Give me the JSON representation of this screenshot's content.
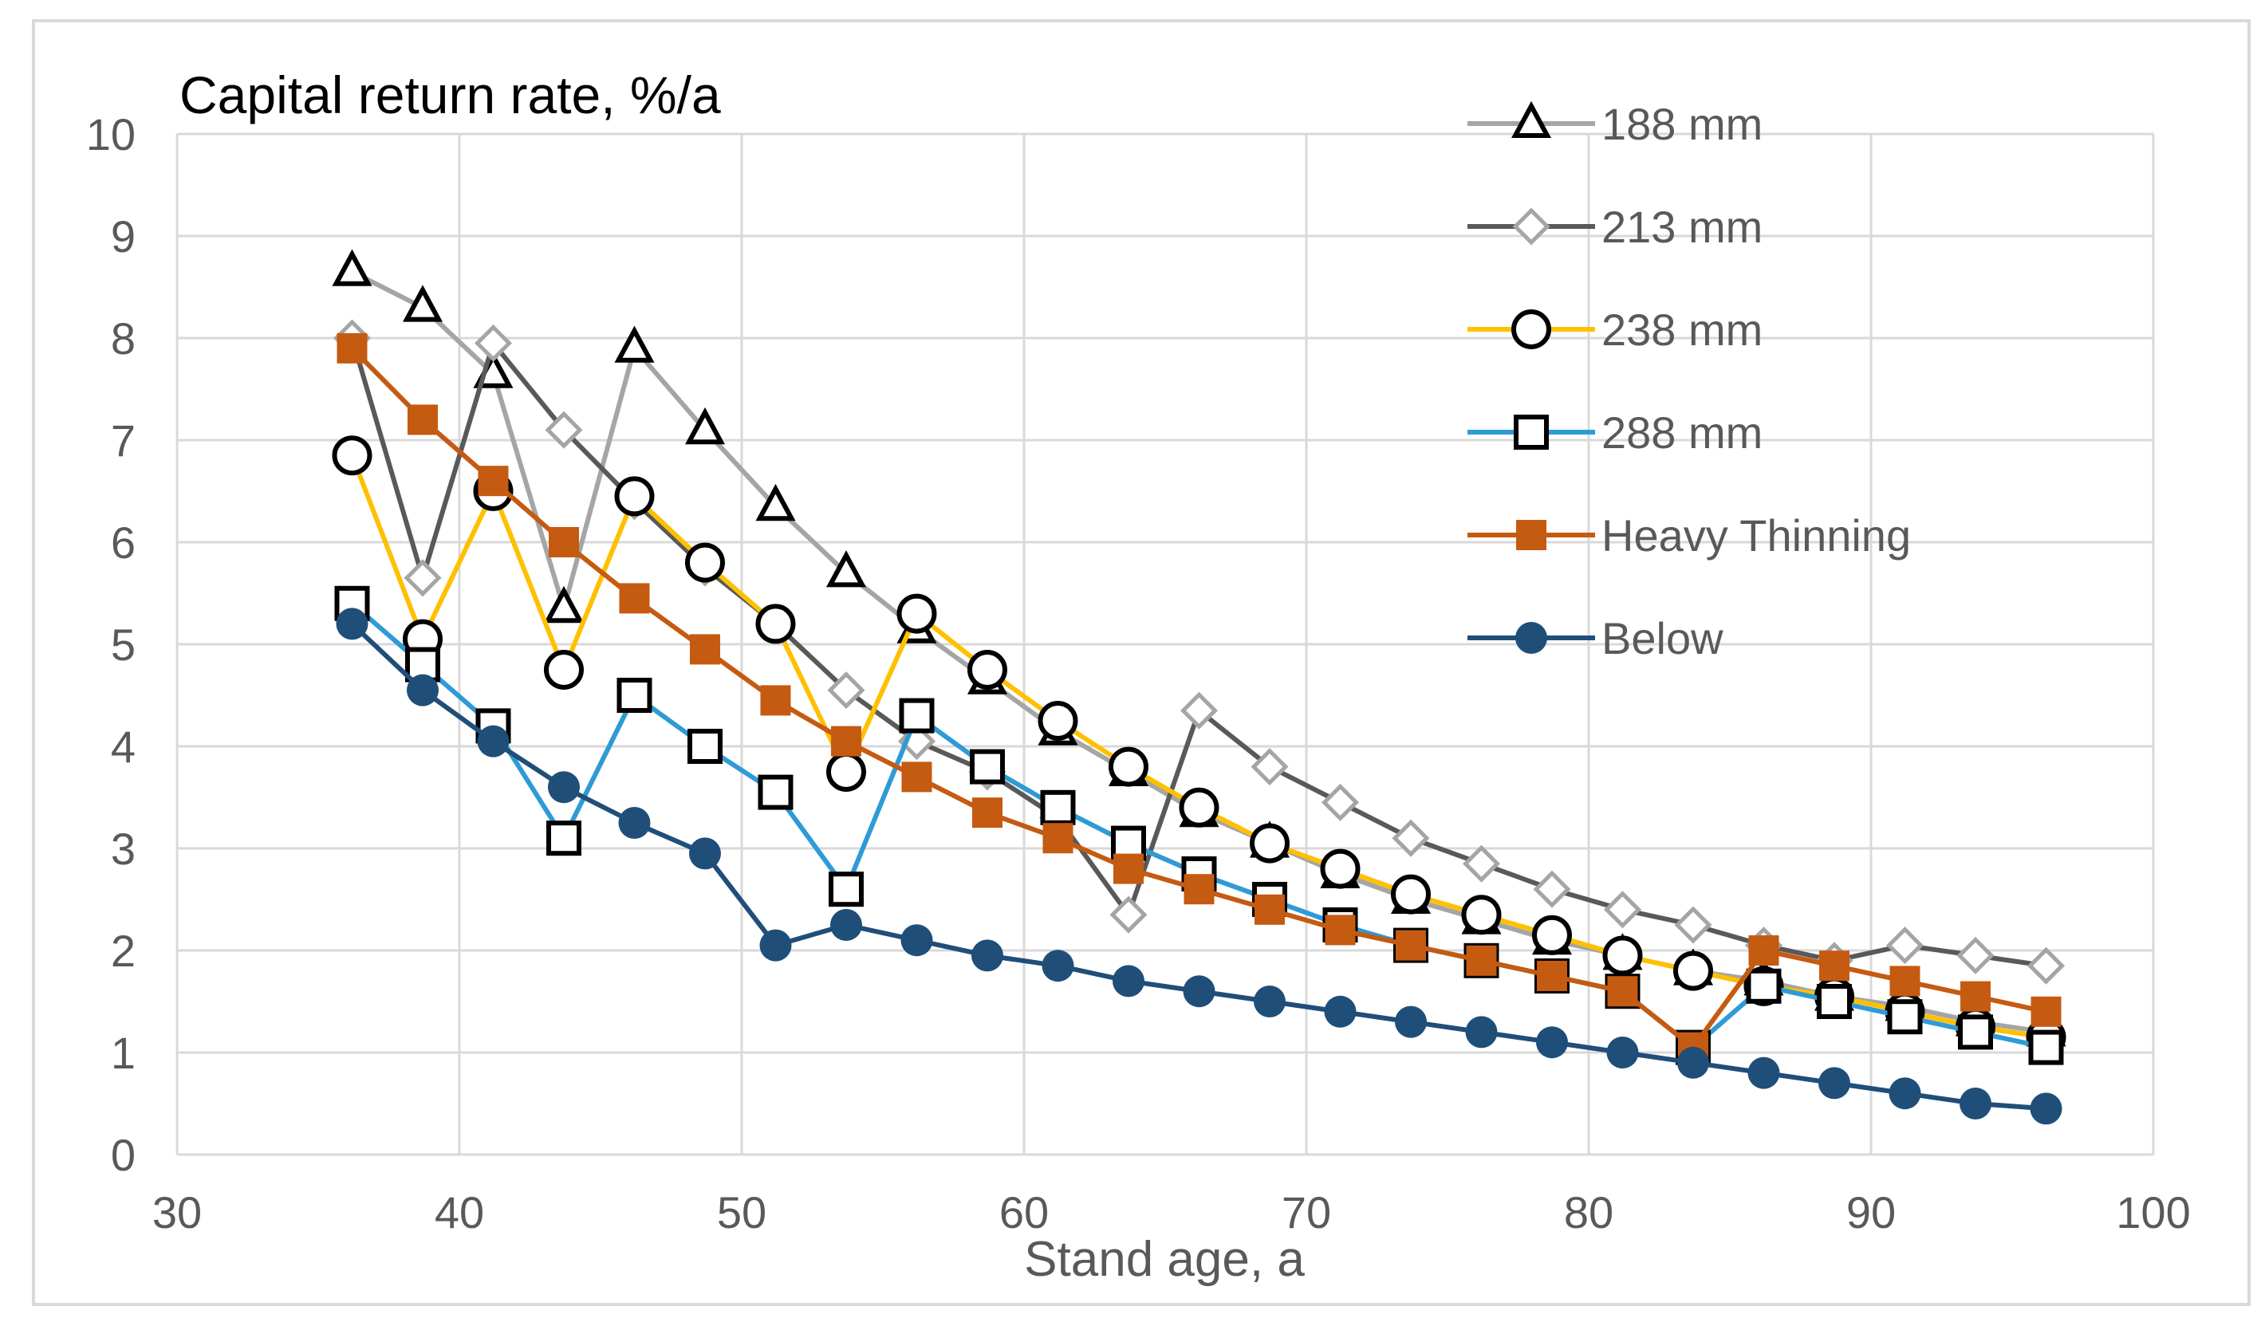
{
  "chart_data": {
    "type": "line",
    "title": "Capital return rate,  %/a",
    "xlabel": "Stand age, a",
    "ylabel": "",
    "xlim": [
      30,
      100
    ],
    "ylim": [
      0,
      10
    ],
    "xticks": [
      30,
      40,
      50,
      60,
      70,
      80,
      90,
      100
    ],
    "yticks": [
      0,
      1,
      2,
      3,
      4,
      5,
      6,
      7,
      8,
      9,
      10
    ],
    "grid": true,
    "legend_position": "top-right",
    "x": [
      36.2,
      38.7,
      41.2,
      43.7,
      46.2,
      48.7,
      51.2,
      53.7,
      56.2,
      58.7,
      61.2,
      63.7,
      66.2,
      68.7,
      71.2,
      73.7,
      76.2,
      78.7,
      81.2,
      83.7,
      86.2,
      88.7,
      91.2,
      93.7,
      96.2
    ],
    "series": [
      {
        "name": "188 mm",
        "marker": "triangle-open",
        "color": "#a5a5a5",
        "values": [
          8.65,
          8.3,
          7.65,
          5.35,
          7.9,
          7.1,
          6.35,
          5.7,
          5.15,
          4.65,
          4.15,
          3.75,
          3.35,
          3.05,
          2.75,
          2.5,
          2.3,
          2.1,
          1.95,
          1.8,
          1.7,
          1.55,
          1.45,
          1.3,
          1.2
        ]
      },
      {
        "name": "213 mm",
        "marker": "diamond-open",
        "color": "#595959",
        "values": [
          8.0,
          5.65,
          7.95,
          7.1,
          6.4,
          5.75,
          5.2,
          4.55,
          4.05,
          3.75,
          3.3,
          2.35,
          4.35,
          3.8,
          3.45,
          3.1,
          2.85,
          2.6,
          2.4,
          2.25,
          2.05,
          1.9,
          2.05,
          1.95,
          1.85
        ]
      },
      {
        "name": "238 mm",
        "marker": "circle-open",
        "color": "#ffc000",
        "values": [
          6.85,
          5.05,
          6.5,
          4.75,
          6.45,
          5.8,
          5.2,
          3.75,
          5.3,
          4.75,
          4.25,
          3.8,
          3.4,
          3.05,
          2.8,
          2.55,
          2.35,
          2.15,
          1.95,
          1.8,
          1.65,
          1.55,
          1.4,
          1.25,
          1.15
        ]
      },
      {
        "name": "288 mm",
        "marker": "square-open",
        "color": "#2e9bd6",
        "values": [
          5.4,
          4.8,
          4.2,
          3.1,
          4.5,
          4.0,
          3.55,
          2.6,
          4.3,
          3.8,
          3.4,
          3.05,
          2.75,
          2.5,
          2.25,
          2.05,
          1.9,
          1.75,
          1.6,
          1.05,
          1.65,
          1.5,
          1.35,
          1.2,
          1.05
        ]
      },
      {
        "name": "Heavy Thinning",
        "marker": "square-filled",
        "color": "#c55a11",
        "values": [
          7.9,
          7.2,
          6.6,
          6.0,
          5.45,
          4.95,
          4.45,
          4.05,
          3.7,
          3.35,
          3.1,
          2.8,
          2.6,
          2.4,
          2.2,
          2.05,
          1.9,
          1.75,
          1.6,
          1.05,
          2.0,
          1.85,
          1.7,
          1.55,
          1.4
        ]
      },
      {
        "name": "Below",
        "marker": "circle-filled",
        "color": "#1f4e79",
        "values": [
          5.2,
          4.55,
          4.05,
          3.6,
          3.25,
          2.95,
          2.05,
          2.25,
          2.1,
          1.95,
          1.85,
          1.7,
          1.6,
          1.5,
          1.4,
          1.3,
          1.2,
          1.1,
          1.0,
          0.9,
          0.8,
          0.7,
          0.6,
          0.5,
          0.45
        ]
      }
    ]
  }
}
